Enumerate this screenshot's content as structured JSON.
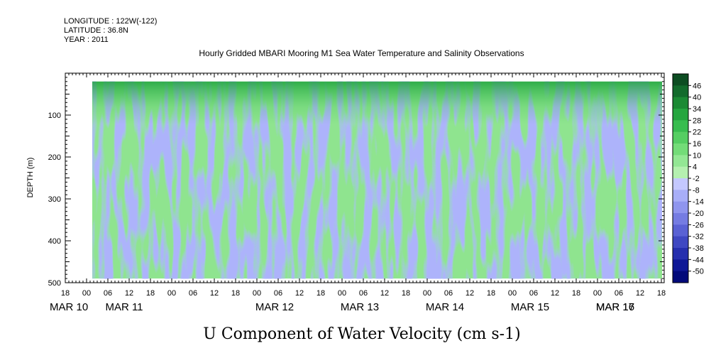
{
  "header": {
    "longitude": "LONGITUDE : 122W(-122)",
    "latitude": "LATITUDE : 36.8N",
    "year": "YEAR : 2011"
  },
  "chart_data": {
    "type": "heatmap",
    "title": "Hourly Gridded MBARI Mooring M1 Sea Water Temperature and Salinity Observations",
    "xlabel": "U Component of Water Velocity (cm s-1)",
    "ylabel": "DEPTH (m)",
    "ylim": [
      500,
      0
    ],
    "y_ticks": [
      100,
      200,
      300,
      400,
      500
    ],
    "y_tick_labels": [
      "100",
      "200",
      "300",
      "400",
      "500"
    ],
    "x_hour_ticks": [
      "18",
      "00",
      "06",
      "12",
      "18",
      "00",
      "06",
      "12",
      "18",
      "00",
      "06",
      "12",
      "18",
      "00",
      "06",
      "12",
      "18",
      "00",
      "06",
      "12",
      "18",
      "00",
      "06",
      "12",
      "18",
      "00",
      "06",
      "12",
      "18"
    ],
    "x_day_labels": [
      "MAR 10",
      "MAR 11",
      "MAR 12",
      "MAR 13",
      "MAR 14",
      "MAR 15",
      "MAR 16",
      "MAR 17"
    ],
    "data_depth_range_m": [
      20,
      490
    ],
    "colorbar_labels": [
      "46",
      "40",
      "34",
      "28",
      "22",
      "16",
      "10",
      "4",
      "-2",
      "-8",
      "-14",
      "-20",
      "-26",
      "-32",
      "-38",
      "-44",
      "-50"
    ],
    "colorbar_colors": [
      "#0d4d22",
      "#136b2c",
      "#1b8a34",
      "#25a63f",
      "#38bd4f",
      "#55ce62",
      "#73dc78",
      "#93e794",
      "#b5f0b0",
      "#c4c8ff",
      "#a8aef8",
      "#8f95ee",
      "#757ce2",
      "#5a62d4",
      "#3f48c2",
      "#262fae",
      "#0f1896",
      "#030a7a"
    ],
    "dominant_colors": {
      "positive": "#8fe48f",
      "negative": "#adb3fb"
    }
  }
}
